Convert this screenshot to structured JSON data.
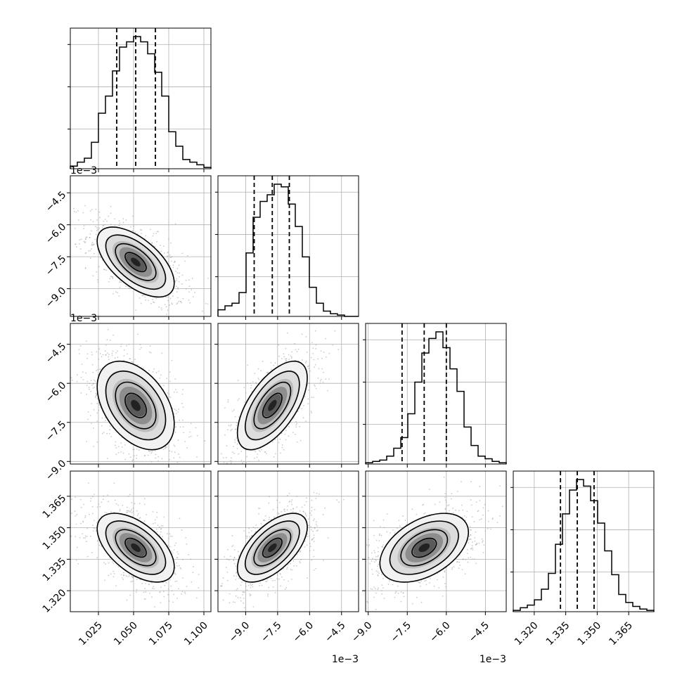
{
  "page": {
    "background": "#ffffff"
  },
  "parameters": [
    {
      "key": "p0",
      "range": [
        1.005,
        1.105
      ],
      "ticks": [
        1.025,
        1.05,
        1.075,
        1.1
      ],
      "tick_labels": [
        "1.025",
        "1.050",
        "1.075",
        "1.100"
      ],
      "offset_text": "",
      "median": 1.0515,
      "q16": 1.038,
      "q84": 1.0655,
      "std": 0.0137
    },
    {
      "key": "p1",
      "range": [
        -10.3,
        -3.7
      ],
      "ticks": [
        -9.0,
        -7.5,
        -6.0,
        -4.5
      ],
      "tick_labels": [
        "−9.0",
        "−7.5",
        "−6.0",
        "−4.5"
      ],
      "offset_text": "1e−3",
      "median": -7.75,
      "q16": -8.6,
      "q84": -6.95,
      "std": 0.82
    },
    {
      "key": "p2",
      "range": [
        -9.1,
        -3.7
      ],
      "ticks": [
        -9.0,
        -7.5,
        -6.0,
        -4.5
      ],
      "tick_labels": [
        "−9.0",
        "−7.5",
        "−6.0",
        "−4.5"
      ],
      "offset_text": "1e−3",
      "median": -6.85,
      "q16": -7.7,
      "q84": -6.0,
      "std": 0.85
    },
    {
      "key": "p3",
      "range": [
        1.31,
        1.377
      ],
      "ticks": [
        1.32,
        1.335,
        1.35,
        1.365
      ],
      "tick_labels": [
        "1.320",
        "1.335",
        "1.350",
        "1.365"
      ],
      "offset_text": "",
      "median": 1.3405,
      "q16": 1.3325,
      "q84": 1.3485,
      "std": 0.0082
    }
  ],
  "chart_data": {
    "type": "corner",
    "params": [
      "p0",
      "p1",
      "p2",
      "p3"
    ],
    "medians": [
      1.0515,
      -7.75,
      -6.85,
      1.3405
    ],
    "quantiles": [
      0.16,
      0.5,
      0.84
    ],
    "correlations": {
      "p0_p1": -0.6,
      "p0_p2": -0.42,
      "p0_p3": -0.55,
      "p1_p2": 0.62,
      "p1_p3": 0.6,
      "p2_p3": 0.45
    },
    "histograms": {
      "p0": [
        0.02,
        0.05,
        0.08,
        0.2,
        0.42,
        0.55,
        0.74,
        0.92,
        0.96,
        1.0,
        0.96,
        0.87,
        0.73,
        0.55,
        0.28,
        0.17,
        0.07,
        0.05,
        0.03,
        0.01
      ],
      "p1": [
        0.05,
        0.08,
        0.1,
        0.18,
        0.48,
        0.75,
        0.87,
        0.92,
        1.0,
        0.98,
        0.85,
        0.68,
        0.45,
        0.22,
        0.1,
        0.04,
        0.02,
        0.01,
        0.0,
        0.0
      ],
      "p2": [
        0.01,
        0.02,
        0.03,
        0.06,
        0.12,
        0.2,
        0.38,
        0.62,
        0.84,
        0.95,
        1.0,
        0.88,
        0.72,
        0.55,
        0.28,
        0.14,
        0.06,
        0.04,
        0.02,
        0.01
      ],
      "p3": [
        0.01,
        0.03,
        0.05,
        0.09,
        0.17,
        0.29,
        0.51,
        0.74,
        0.92,
        1.0,
        0.95,
        0.84,
        0.67,
        0.46,
        0.28,
        0.13,
        0.07,
        0.04,
        0.02,
        0.01
      ]
    },
    "ylabels_shown_for": [
      "p1",
      "p2",
      "p3"
    ],
    "xlabels_shown_for": [
      "p0",
      "p1",
      "p2",
      "p3"
    ],
    "grid": true,
    "line_color": "#000000",
    "grid_color": "#b0b0b0",
    "scatter_color": "#a0a0a0"
  }
}
